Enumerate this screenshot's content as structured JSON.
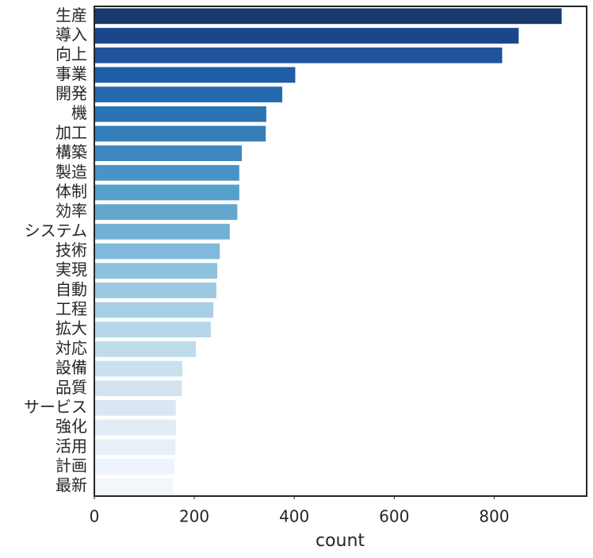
{
  "chart_data": {
    "type": "bar",
    "orientation": "horizontal",
    "categories": [
      "生産",
      "導入",
      "向上",
      "事業",
      "開発",
      "機",
      "加工",
      "構築",
      "製造",
      "体制",
      "効率",
      "システム",
      "技術",
      "実現",
      "自動",
      "工程",
      "拡大",
      "対応",
      "設備",
      "品質",
      "サービス",
      "強化",
      "活用",
      "計画",
      "最新"
    ],
    "values": [
      935,
      849,
      816,
      402,
      376,
      344,
      343,
      295,
      290,
      290,
      286,
      271,
      251,
      246,
      244,
      238,
      233,
      203,
      176,
      175,
      163,
      163,
      162,
      160,
      157
    ],
    "colors": [
      "#19386b",
      "#1b478a",
      "#1e539b",
      "#1f5ea6",
      "#2469ad",
      "#2b74b3",
      "#347fba",
      "#3d89bf",
      "#4994c5",
      "#569ecb",
      "#63a7cf",
      "#72b1d4",
      "#80b9d9",
      "#8ec2dd",
      "#9cc9e1",
      "#a8d0e4",
      "#b4d6e8",
      "#bfdceb",
      "#c9e0ee",
      "#d1e3f1",
      "#d9e7f4",
      "#e0ecf6",
      "#e7f0f8",
      "#edf4fb",
      "#f2f7fc"
    ],
    "xlabel": "count",
    "xlim": [
      0,
      985
    ],
    "xticks": [
      0,
      200,
      400,
      600,
      800
    ],
    "grid": false
  }
}
